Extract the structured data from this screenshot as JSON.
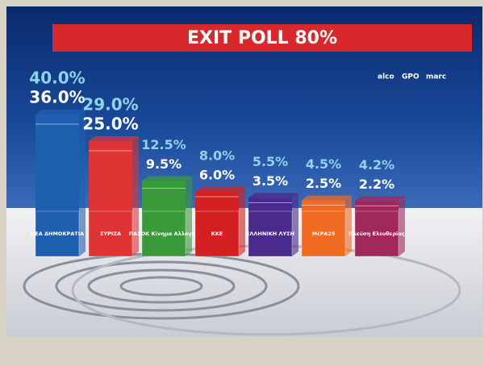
{
  "chart_data": {
    "type": "range-bar",
    "title": "EXIT POLL 80%",
    "pollsters": [
      "alco",
      "GPO",
      "marc"
    ],
    "categories": [
      "ΝΕΑ ΔΗΜΟΚΡΑΤΙΑ",
      "ΣΥΡΙΖΑ",
      "ΠΑΣΟΚ Κίνημα Αλλαγής",
      "ΚΚΕ",
      "ΕΛΛΗΝΙΚΗ ΛΥΣΗ",
      "ΜέΡΑ25",
      "Πλεύση Ελευθερίας"
    ],
    "colors": [
      "#1f5fb0",
      "#e03434",
      "#3a9a3a",
      "#d42020",
      "#4a2a8a",
      "#f06a22",
      "#a0285a"
    ],
    "series": [
      {
        "values": [
          40.0,
          29.0,
          12.5,
          8.0,
          5.5,
          4.5,
          4.2
        ],
        "value_labels": [
          "40.0%",
          "29.0%",
          "12.5%",
          "8.0%",
          "5.5%",
          "4.5%",
          "4.2%"
        ],
        "color": "#8fd3ea"
      },
      {
        "values": [
          36.0,
          25.0,
          9.5,
          6.0,
          3.5,
          2.5,
          2.2
        ],
        "value_labels": [
          "36.0%",
          "25.0%",
          "9.5%",
          "6.0%",
          "3.5%",
          "2.5%",
          "2.2%"
        ],
        "color": "#ffffff"
      }
    ]
  }
}
